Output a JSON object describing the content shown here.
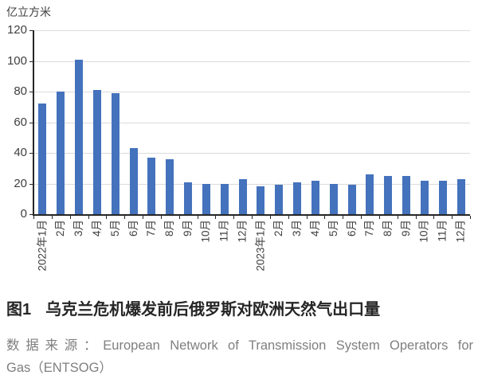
{
  "figure": {
    "label": "图1",
    "title": "乌克兰危机爆发前后俄罗斯对欧洲天然气出口量"
  },
  "source": {
    "prefix": "数据来源：",
    "line1": "European Network of Transmission System Operators for",
    "line2": "Gas（ENTSOG）"
  },
  "colors": {
    "bar": "#4472BC",
    "grid": "#DBDBDB",
    "axis": "#262626",
    "label": "#404040",
    "title": "#262626",
    "source_text": "#7F7F7F",
    "background": "#FFFFFF"
  },
  "chart_data": {
    "type": "bar",
    "title": "图1 乌克兰危机爆发前后俄罗斯对欧洲天然气出口量",
    "ylabel": "亿立方米",
    "xlabel": "",
    "ylim": [
      0,
      120
    ],
    "yticks": [
      0,
      20,
      40,
      60,
      80,
      100,
      120
    ],
    "grid": "horizontal",
    "legend": "none",
    "categories": [
      "2022年1月",
      "2月",
      "3月",
      "4月",
      "5月",
      "6月",
      "7月",
      "8月",
      "9月",
      "10月",
      "11月",
      "12月",
      "2023年1月",
      "2月",
      "3月",
      "4月",
      "5月",
      "6月",
      "7月",
      "8月",
      "9月",
      "10月",
      "11月",
      "12月"
    ],
    "values": [
      72,
      80,
      101,
      81,
      79,
      43,
      37,
      36,
      21,
      20,
      20,
      23,
      18,
      19,
      21,
      22,
      20,
      19,
      26,
      25,
      25,
      22,
      22,
      23
    ]
  }
}
